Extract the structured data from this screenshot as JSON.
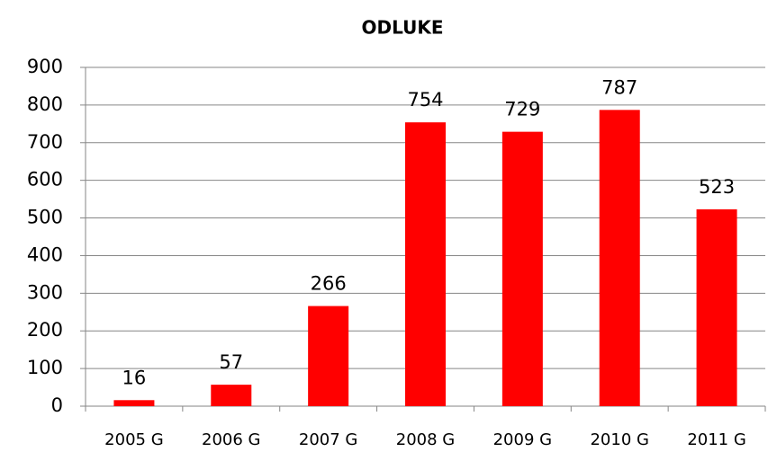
{
  "chart_data": {
    "type": "bar",
    "title": "ODLUKE",
    "categories": [
      "2005 G",
      "2006 G",
      "2007 G",
      "2008 G",
      "2009 G",
      "2010 G",
      "2011 G"
    ],
    "values": [
      16,
      57,
      266,
      754,
      729,
      787,
      523
    ],
    "color": "#ff0000",
    "ylim": [
      0,
      900
    ],
    "yticks": [
      0,
      100,
      200,
      300,
      400,
      500,
      600,
      700,
      800,
      900
    ],
    "grid": true
  }
}
